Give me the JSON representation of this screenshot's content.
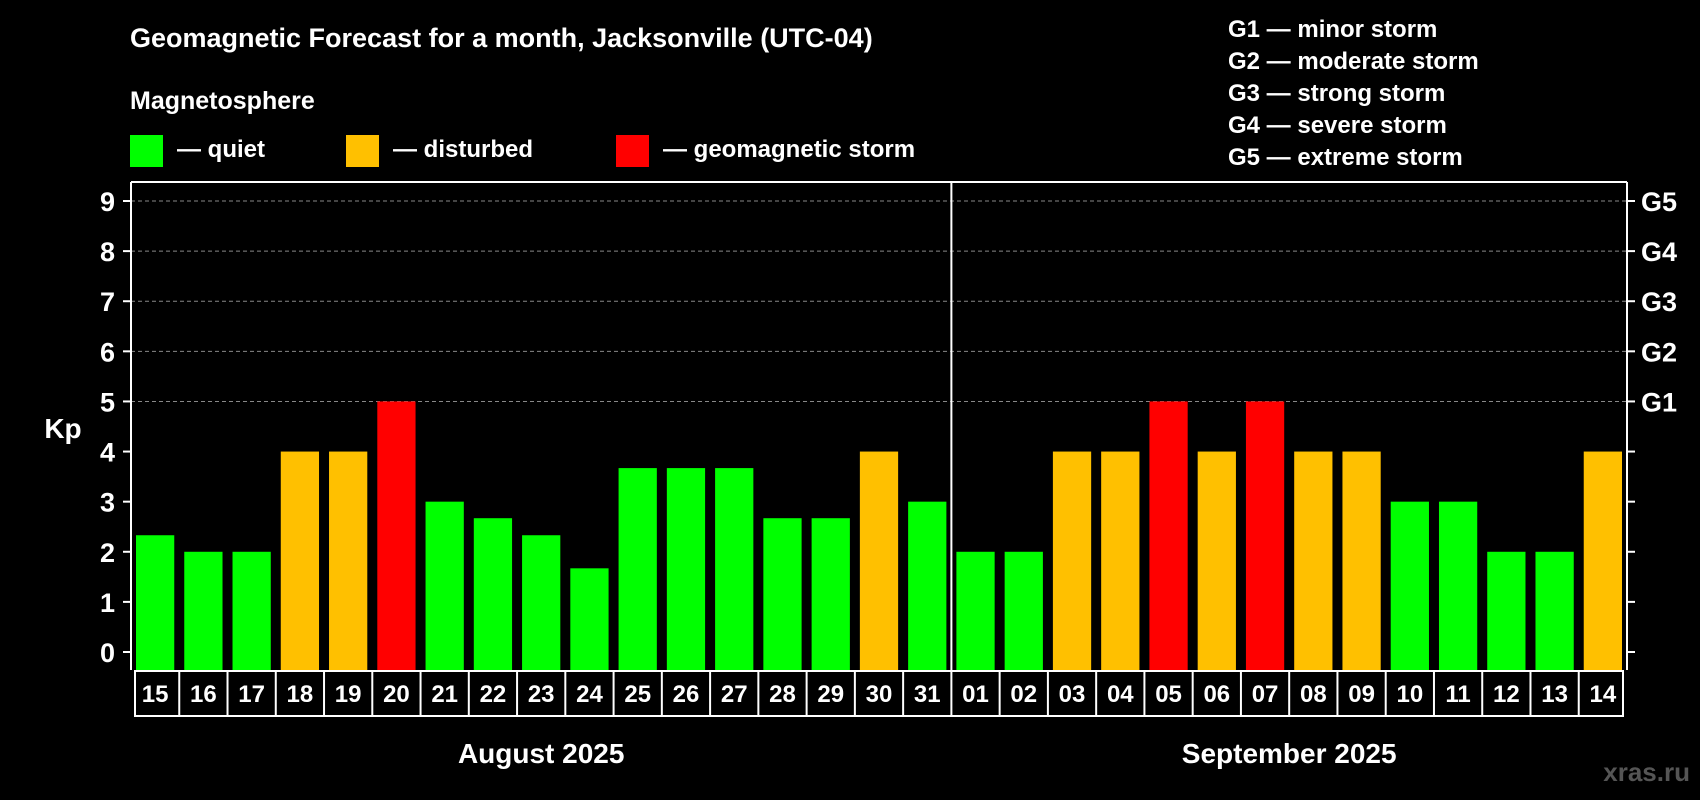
{
  "chart_data": {
    "type": "bar",
    "title": "Geomagnetic Forecast for a month, Jacksonville (UTC-04)",
    "legend": {
      "heading": "Magnetosphere",
      "items": [
        {
          "label": "— quiet",
          "color": "#00ff00"
        },
        {
          "label": "— disturbed",
          "color": "#ffc000"
        },
        {
          "label": "— geomagnetic storm",
          "color": "#ff0000"
        }
      ]
    },
    "storm_scale": [
      "G1 — minor storm",
      "G2 — moderate storm",
      "G3 — strong storm",
      "G4 — severe storm",
      "G5 — extreme storm"
    ],
    "ylabel": "Kp",
    "ylim": [
      0,
      9
    ],
    "yticks": [
      "0",
      "1",
      "2",
      "3",
      "4",
      "5",
      "6",
      "7",
      "8",
      "9"
    ],
    "right_axis_labels": [
      {
        "kp": 5,
        "label": "G1"
      },
      {
        "kp": 6,
        "label": "G2"
      },
      {
        "kp": 7,
        "label": "G3"
      },
      {
        "kp": 8,
        "label": "G4"
      },
      {
        "kp": 9,
        "label": "G5"
      }
    ],
    "categories": [
      "15",
      "16",
      "17",
      "18",
      "19",
      "20",
      "21",
      "22",
      "23",
      "24",
      "25",
      "26",
      "27",
      "28",
      "29",
      "30",
      "31",
      "01",
      "02",
      "03",
      "04",
      "05",
      "06",
      "07",
      "08",
      "09",
      "10",
      "11",
      "12",
      "13",
      "14"
    ],
    "values": [
      2.33,
      2.0,
      2.0,
      4.0,
      4.0,
      5.0,
      3.0,
      2.67,
      2.33,
      1.67,
      3.67,
      3.67,
      3.67,
      2.67,
      2.67,
      4.0,
      3.0,
      2.0,
      2.0,
      4.0,
      4.0,
      5.0,
      4.0,
      5.0,
      4.0,
      4.0,
      3.0,
      3.0,
      2.0,
      2.0,
      4.0
    ],
    "levels": [
      "quiet",
      "quiet",
      "quiet",
      "disturbed",
      "disturbed",
      "storm",
      "quiet",
      "quiet",
      "quiet",
      "quiet",
      "quiet",
      "quiet",
      "quiet",
      "quiet",
      "quiet",
      "disturbed",
      "quiet",
      "quiet",
      "quiet",
      "disturbed",
      "disturbed",
      "storm",
      "disturbed",
      "storm",
      "disturbed",
      "disturbed",
      "quiet",
      "quiet",
      "quiet",
      "quiet",
      "disturbed"
    ],
    "colors": {
      "quiet": "#00ff00",
      "disturbed": "#ffc000",
      "storm": "#ff0000"
    },
    "months": [
      {
        "label": "August 2025",
        "first_index": 0,
        "last_index": 16
      },
      {
        "label": "September 2025",
        "first_index": 17,
        "last_index": 30
      }
    ],
    "grid": true
  },
  "watermark": "xras.ru"
}
